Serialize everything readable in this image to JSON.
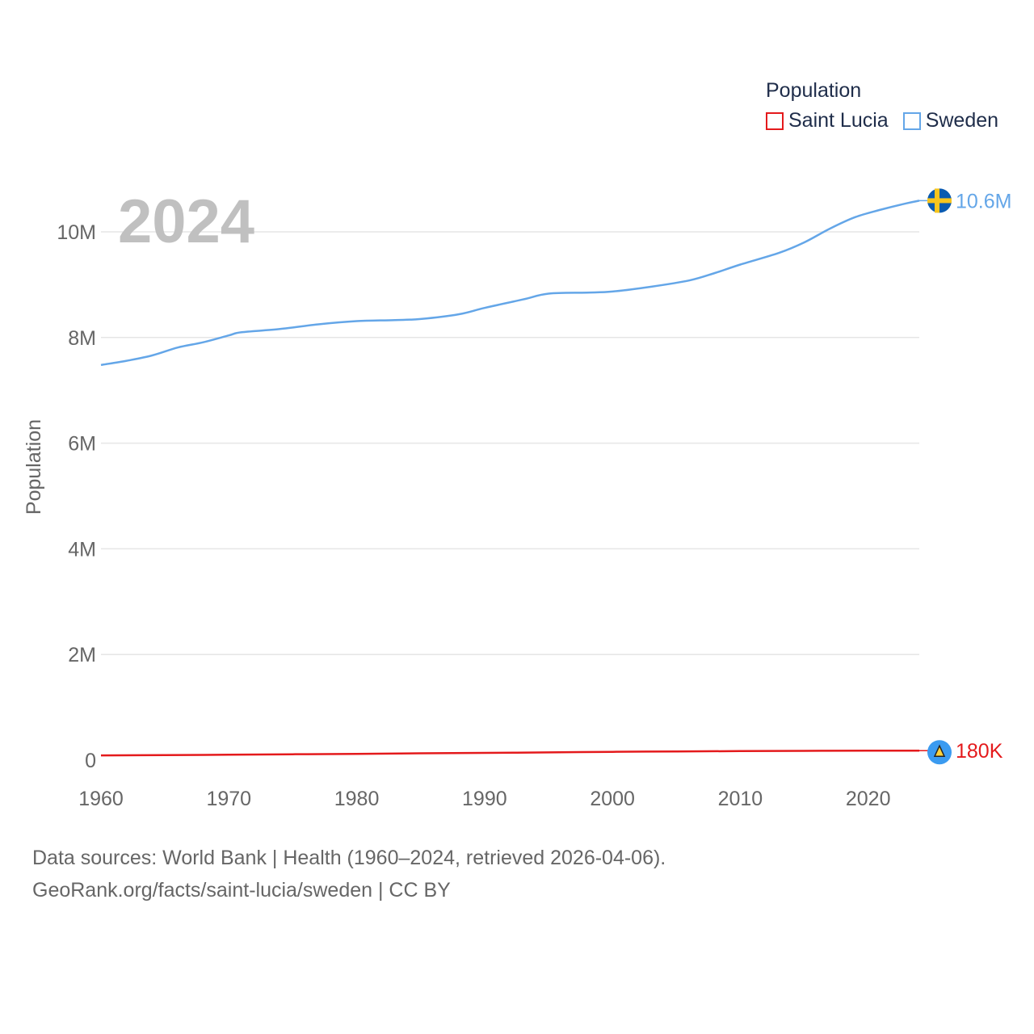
{
  "legend": {
    "title": "Population",
    "items": [
      {
        "label": "Saint Lucia",
        "color": "#e41a1c"
      },
      {
        "label": "Sweden",
        "color": "#64a6e8"
      }
    ]
  },
  "footer": {
    "line1": "Data sources: World Bank | Health (1960–2024, retrieved 2026-04-06).",
    "line2": "GeoRank.org/facts/saint-lucia/sweden | CC BY"
  },
  "chart_data": {
    "type": "line",
    "title": "",
    "year_label": "2024",
    "xlabel": "",
    "ylabel": "Population",
    "xlim": [
      1960,
      2024
    ],
    "ylim": [
      0,
      10000000
    ],
    "x_ticks": [
      1960,
      1970,
      1980,
      1990,
      2000,
      2010,
      2020
    ],
    "y_ticks": [
      0,
      2000000,
      4000000,
      6000000,
      8000000,
      10000000
    ],
    "y_tick_labels": [
      "0",
      "2M",
      "4M",
      "6M",
      "8M",
      "10M"
    ],
    "grid": true,
    "series": [
      {
        "name": "Saint Lucia",
        "color": "#e41a1c",
        "end_label": "180K",
        "x": [
          1960,
          1965,
          1970,
          1975,
          1980,
          1985,
          1990,
          1995,
          2000,
          2005,
          2010,
          2015,
          2020,
          2024
        ],
        "values": [
          90000,
          95000,
          103000,
          112000,
          120000,
          130000,
          138000,
          147000,
          157000,
          165000,
          171000,
          176000,
          179000,
          180000
        ]
      },
      {
        "name": "Sweden",
        "color": "#64a6e8",
        "end_label": "10.6M",
        "x": [
          1960,
          1962,
          1964,
          1966,
          1968,
          1970,
          1971,
          1974,
          1977,
          1980,
          1983,
          1985,
          1988,
          1990,
          1993,
          1995,
          1998,
          2000,
          2003,
          2006,
          2008,
          2010,
          2013,
          2015,
          2017,
          2019,
          2021,
          2023,
          2024
        ],
        "values": [
          7480000,
          7560000,
          7660000,
          7810000,
          7910000,
          8040000,
          8100000,
          8160000,
          8250000,
          8310000,
          8330000,
          8350000,
          8440000,
          8560000,
          8720000,
          8830000,
          8850000,
          8870000,
          8960000,
          9080000,
          9220000,
          9380000,
          9600000,
          9800000,
          10060000,
          10280000,
          10420000,
          10540000,
          10590000
        ]
      }
    ]
  }
}
